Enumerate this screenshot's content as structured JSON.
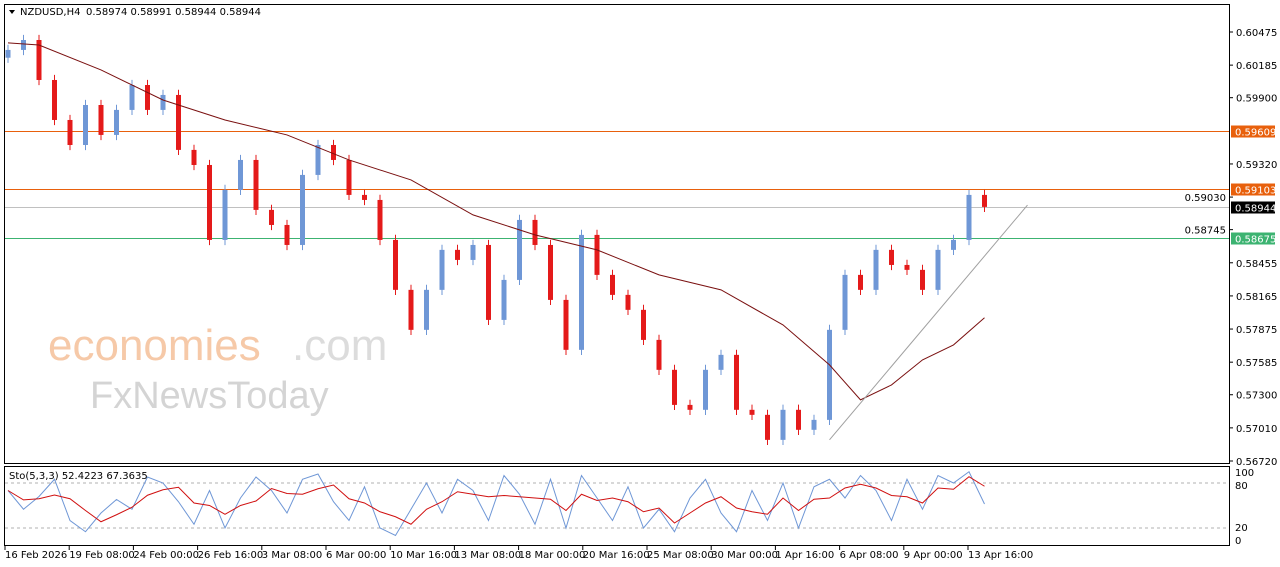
{
  "header": {
    "symbol": "NZDUSD,H4",
    "ohlc": "0.58974 0.58991 0.58944 0.58944"
  },
  "watermark": {
    "line1a": "economies",
    "line1b": ".com",
    "line2": "FxNewsToday"
  },
  "colors": {
    "up": "#6f97d6",
    "down": "#e41a1a",
    "ma": "#7a1010",
    "resistance": "#e8600c",
    "support": "#3cb371",
    "bid": "#000000",
    "stoch_k": "#6f97d6",
    "stoch_d": "#d01010"
  },
  "chart_data": [
    {
      "type": "candlestick",
      "title": "NZDUSD,H4",
      "ylim": [
        0.5672,
        0.60475
      ],
      "y_ticks": [
        "0.60475",
        "0.60185",
        "0.59900",
        "0.59320",
        "0.59030",
        "0.58745",
        "0.58455",
        "0.58165",
        "0.57875",
        "0.57585",
        "0.57300",
        "0.57010",
        "0.56720"
      ],
      "x_ticks": [
        "16 Feb 2026",
        "19 Feb 08:00",
        "24 Feb 00:00",
        "26 Feb 16:00",
        "3 Mar 08:00",
        "6 Mar 00:00",
        "10 Mar 16:00",
        "13 Mar 08:00",
        "18 Mar 00:00",
        "20 Mar 16:00",
        "25 Mar 08:00",
        "30 Mar 00:00",
        "1 Apr 16:00",
        "6 Apr 08:00",
        "9 Apr 00:00",
        "13 Apr 16:00"
      ],
      "first_open": 0.6025,
      "closes": [
        0.60318,
        0.60405,
        0.60055,
        0.59705,
        0.59486,
        0.59836,
        0.59574,
        0.59793,
        0.60011,
        0.59793,
        0.59924,
        0.59443,
        0.59311,
        0.58655,
        0.59093,
        0.59355,
        0.58918,
        0.58786,
        0.58611,
        0.59224,
        0.59486,
        0.59355,
        0.59049,
        0.59005,
        0.58655,
        0.58218,
        0.57868,
        0.58218,
        0.58568,
        0.5848,
        0.58611,
        0.57955,
        0.58305,
        0.5883,
        0.58611,
        0.5813,
        0.57693,
        0.58699,
        0.58349,
        0.58174,
        0.58043,
        0.5778,
        0.57518,
        0.57211,
        0.57168,
        0.57518,
        0.57649,
        0.57168,
        0.57124,
        0.56905,
        0.57168,
        0.56993,
        0.5708,
        0.57868,
        0.58349,
        0.58218,
        0.58568,
        0.58436,
        0.58393,
        0.58218,
        0.58568,
        0.58655,
        0.59049,
        0.58944
      ],
      "moving_average": [
        [
          0,
          0.6038
        ],
        [
          2,
          0.60361
        ],
        [
          6,
          0.60143
        ],
        [
          10,
          0.5988
        ],
        [
          14,
          0.59705
        ],
        [
          18,
          0.59574
        ],
        [
          22,
          0.59355
        ],
        [
          26,
          0.5918
        ],
        [
          30,
          0.58874
        ],
        [
          34,
          0.58699
        ],
        [
          38,
          0.58568
        ],
        [
          42,
          0.58349
        ],
        [
          46,
          0.58218
        ],
        [
          50,
          0.57911
        ],
        [
          53,
          0.57561
        ],
        [
          55,
          0.57255
        ],
        [
          57,
          0.57386
        ],
        [
          59,
          0.57605
        ],
        [
          61,
          0.57736
        ],
        [
          63,
          0.57974
        ]
      ],
      "levels": [
        {
          "label": "0.59609",
          "value": 0.59609,
          "kind": "resistance"
        },
        {
          "label": "0.59103",
          "value": 0.59103,
          "kind": "resistance"
        },
        {
          "label": "0.58675",
          "value": 0.58675,
          "kind": "support"
        },
        {
          "label": "0.58944",
          "value": 0.58944,
          "kind": "bid"
        }
      ],
      "trendline": [
        [
          53,
          0.56905
        ],
        [
          65,
          0.5896
        ]
      ]
    },
    {
      "type": "line",
      "title": "Sto(5,3,3) 52.4223 67.3635",
      "ylim": [
        0,
        100
      ],
      "y_ticks": [
        "100",
        "80",
        "20",
        "0"
      ],
      "levels": [
        80,
        20
      ],
      "k": [
        70,
        45,
        62,
        85,
        30,
        15,
        40,
        58,
        45,
        88,
        80,
        55,
        25,
        70,
        20,
        60,
        88,
        70,
        40,
        85,
        92,
        55,
        30,
        75,
        20,
        10,
        45,
        80,
        40,
        85,
        70,
        30,
        90,
        65,
        25,
        85,
        20,
        90,
        60,
        30,
        75,
        20,
        45,
        15,
        60,
        85,
        40,
        15,
        70,
        30,
        80,
        20,
        75,
        85,
        60,
        90,
        70,
        30,
        85,
        45,
        90,
        80,
        95,
        52
      ]
    }
  ]
}
